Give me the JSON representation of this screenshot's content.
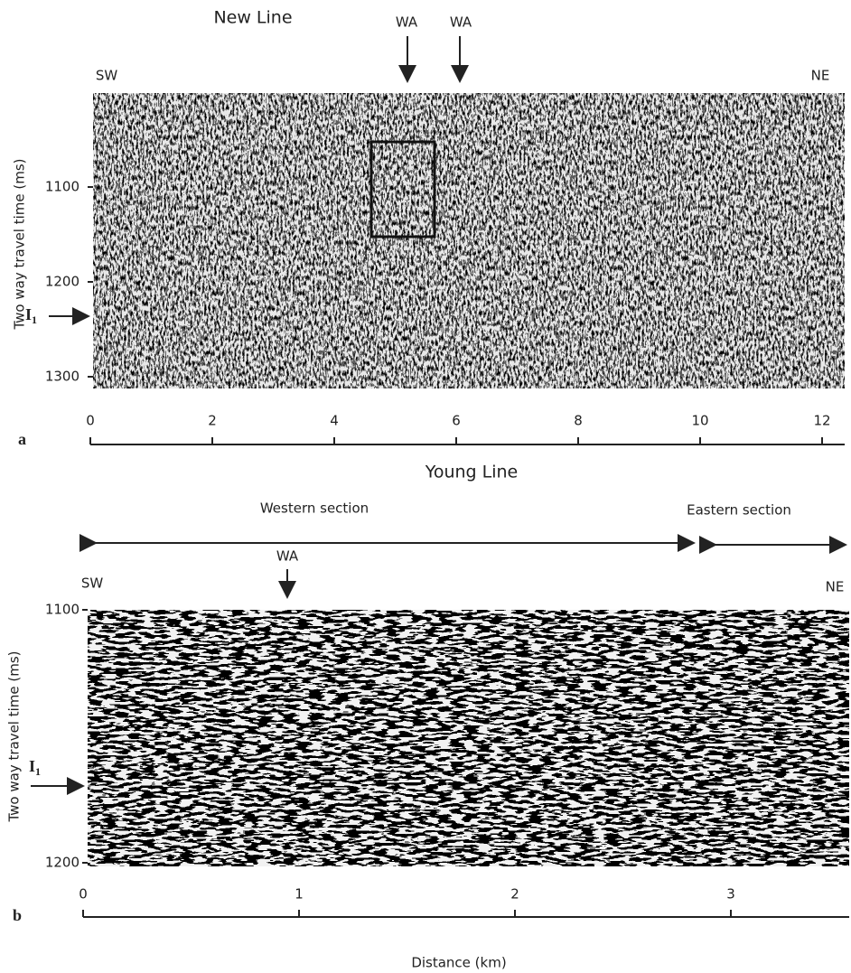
{
  "panels": [
    {
      "label": "a",
      "title": "New Line",
      "markers": [
        "WA",
        "WA"
      ],
      "left": "SW",
      "right": "NE",
      "y_axis_label": "Two way travel time (ms)",
      "yticks": [
        1100,
        1200,
        1300
      ],
      "xticks": [
        0,
        2,
        4,
        6,
        8,
        10,
        12
      ],
      "horizon": {
        "label": "I",
        "subscript": "1"
      }
    },
    {
      "label": "b",
      "title": "Young Line",
      "sections": [
        "Western section",
        "Eastern section"
      ],
      "markers": [
        "WA"
      ],
      "left": "SW",
      "right": "NE",
      "y_axis_label": "Two way travel time (ms)",
      "yticks": [
        1100,
        1200
      ],
      "xticks": [
        0,
        1,
        2,
        3
      ],
      "horizon": {
        "label": "I",
        "subscript": "1"
      },
      "x_axis_label": "Distance (km)"
    }
  ]
}
